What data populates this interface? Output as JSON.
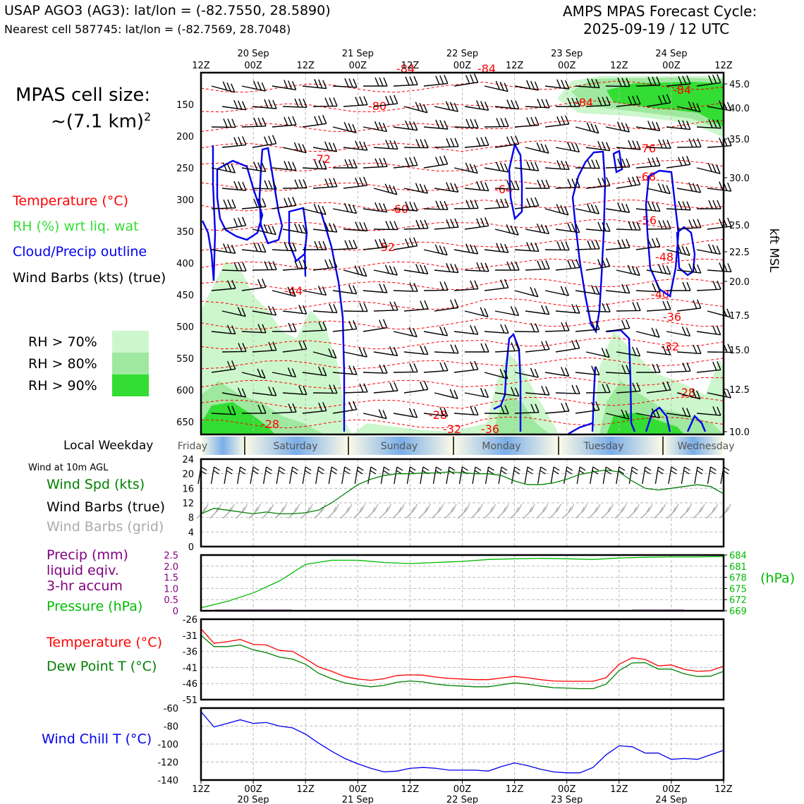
{
  "header": {
    "station_line": "USAP AGO3 (AG3): lat/lon = (-82.7550, 28.5890)",
    "cell_line": "Nearest cell 587745: lat/lon = (-82.7569, 28.7048)",
    "forecast_title": "AMPS MPAS Forecast Cycle:",
    "forecast_cycle": "2025-09-19 / 12 UTC"
  },
  "cell_size": {
    "line1": "MPAS cell size:",
    "line2": "~(7.1 km)",
    "sup": "2"
  },
  "legend": {
    "temperature": "Temperature (°C)",
    "rh": "RH (%) wrt liq. wat",
    "cloud": "Cloud/Precip outline",
    "wind": "Wind Barbs (kts) (true)",
    "rh70": "RH > 70%",
    "rh80": "RH > 80%",
    "rh90": "RH > 90%"
  },
  "colors": {
    "temperature": "#ff0000",
    "rh_text": "#33dd33",
    "cloud": "#0000ee",
    "rh70": "#ccf7cc",
    "rh80": "#9fe89f",
    "rh90": "#33dd33",
    "wind_speed": "#008000",
    "precip": "#800080",
    "pressure": "#00bb00",
    "dewpoint": "#008000",
    "windchill": "#0000ee",
    "grid_barbs": "#aaaaaa",
    "weekday_band": "#7aaee8"
  },
  "time_axis": {
    "ticks": [
      "12Z",
      "00Z",
      "12Z",
      "00Z",
      "12Z",
      "00Z",
      "12Z",
      "00Z",
      "12Z",
      "00Z",
      "12Z"
    ],
    "dates": [
      "20 Sep",
      "21 Sep",
      "22 Sep",
      "23 Sep",
      "24 Sep"
    ]
  },
  "weekday": {
    "label": "Local Weekday",
    "days": [
      "Friday",
      "Saturday",
      "Sunday",
      "Monday",
      "Tuesday",
      "Wednesday"
    ]
  },
  "cross_section": {
    "left_axis_ticks": [
      "150",
      "200",
      "250",
      "300",
      "350",
      "400",
      "450",
      "500",
      "550",
      "600",
      "650"
    ],
    "right_axis_ticks": [
      "45.0",
      "40.0",
      "35.0",
      "30.0",
      "25.0",
      "22.5",
      "20.0",
      "17.5",
      "15.0",
      "12.5",
      "10.0"
    ],
    "right_axis_label": "kft MSL",
    "temp_labels": [
      "-84",
      "-84",
      "-84",
      "-84",
      "-80",
      "-76",
      "-72",
      "-68",
      "-64",
      "-60",
      "-56",
      "-52",
      "-48",
      "-44",
      "-40",
      "-36",
      "-32",
      "-28",
      "-28",
      "-28",
      "-32",
      "-36"
    ]
  },
  "wind_panel": {
    "title": "Wind at 10m AGL",
    "label_speed": "Wind Spd (kts)",
    "label_barbs": "Wind Barbs (true)",
    "label_grid": "Wind Barbs (grid)",
    "y_ticks": [
      "24",
      "20",
      "16",
      "12",
      "8",
      "4",
      "0"
    ]
  },
  "precip_panel": {
    "label_precip_1": "Precip (mm)",
    "label_precip_2": "liquid eqiv.",
    "label_precip_3": "3-hr accum",
    "label_pressure": "Pressure (hPa)",
    "left_ticks": [
      "2.5",
      "2.0",
      "1.5",
      "1.0",
      "0.5",
      "0"
    ],
    "right_ticks": [
      "684",
      "681",
      "678",
      "675",
      "672",
      "669"
    ],
    "right_unit": "(hPa)"
  },
  "temp_panel": {
    "label_temp": "Temperature (°C)",
    "label_dew": "Dew Point T (°C)",
    "y_ticks": [
      "-26",
      "-31",
      "-36",
      "-41",
      "-46",
      "-51"
    ]
  },
  "chill_panel": {
    "label": "Wind Chill T (°C)",
    "y_ticks": [
      "-60",
      "-80",
      "-100",
      "-120",
      "-140"
    ]
  },
  "chart_data": [
    {
      "type": "line",
      "title": "Wind at 10m AGL",
      "x_hours": [
        0,
        3,
        6,
        9,
        12,
        15,
        18,
        21,
        24,
        27,
        30,
        33,
        36,
        39,
        42,
        45,
        48,
        51,
        54,
        57,
        60,
        63,
        66,
        69,
        72,
        75,
        78,
        81,
        84,
        87,
        90,
        93,
        96,
        99,
        102,
        105,
        108,
        111,
        114,
        117,
        120
      ],
      "series": [
        {
          "name": "Wind Spd (kts)",
          "values": [
            9,
            10.5,
            10,
            9.5,
            9,
            9.5,
            9,
            9,
            9.3,
            10,
            12,
            14.5,
            17,
            18.5,
            19.5,
            20,
            20,
            20.2,
            20.2,
            20.5,
            20.3,
            20,
            20,
            19.5,
            18,
            17,
            17,
            17.5,
            18.5,
            19.8,
            20.5,
            21,
            20.5,
            18,
            16,
            15.5,
            16,
            16.5,
            17,
            16.5,
            14.5
          ]
        }
      ],
      "ylim": [
        0,
        24
      ]
    },
    {
      "type": "line",
      "title": "Precip / Pressure",
      "x_hours": [
        0,
        6,
        12,
        18,
        24,
        30,
        36,
        42,
        48,
        54,
        60,
        66,
        72,
        78,
        84,
        90,
        96,
        102,
        108,
        114,
        120
      ],
      "series": [
        {
          "name": "Pressure (hPa)",
          "values": [
            669.8,
            671.5,
            673.8,
            677,
            681.5,
            682.6,
            682.6,
            682,
            681.7,
            682,
            682.3,
            682.8,
            683,
            683.1,
            683,
            682.8,
            683.2,
            683.4,
            683.5,
            683.5,
            683.6
          ]
        },
        {
          "name": "Precip (mm)",
          "values": [
            0,
            0.05,
            0.05,
            0.05,
            0,
            0,
            0,
            0,
            0,
            0,
            0,
            0,
            0,
            0,
            0,
            0,
            0,
            0.05,
            0.05,
            0,
            0
          ]
        }
      ],
      "ylim_precip": [
        0,
        2.5
      ],
      "ylim_pressure": [
        669,
        684
      ]
    },
    {
      "type": "line",
      "title": "Temperature / Dew Point",
      "x_hours": [
        0,
        3,
        6,
        9,
        12,
        15,
        18,
        21,
        24,
        27,
        30,
        33,
        36,
        39,
        42,
        45,
        48,
        51,
        54,
        57,
        60,
        63,
        66,
        69,
        72,
        75,
        78,
        81,
        84,
        87,
        90,
        93,
        96,
        99,
        102,
        105,
        108,
        111,
        114,
        117,
        120
      ],
      "series": [
        {
          "name": "Temperature (°C)",
          "values": [
            -29,
            -33.5,
            -33,
            -32.3,
            -33.8,
            -34,
            -35.7,
            -36,
            -38.3,
            -40.8,
            -42.2,
            -43.8,
            -44.6,
            -45,
            -44.5,
            -43.5,
            -43.3,
            -43.4,
            -44,
            -44.4,
            -44.6,
            -44.8,
            -44.8,
            -44.3,
            -43.8,
            -44.2,
            -44.8,
            -45.2,
            -45.3,
            -45.3,
            -45.3,
            -44.2,
            -40,
            -38,
            -38.5,
            -40.5,
            -40.2,
            -41.6,
            -42.2,
            -42,
            -40.6
          ]
        },
        {
          "name": "Dew Point T (°C)",
          "values": [
            -31,
            -34.5,
            -34.5,
            -34,
            -35.5,
            -36.4,
            -37.8,
            -38.4,
            -40,
            -42.8,
            -44.5,
            -45.8,
            -46.5,
            -47,
            -46.6,
            -45.6,
            -45.2,
            -45.5,
            -46.2,
            -46.6,
            -46.8,
            -47,
            -47,
            -46.4,
            -45.8,
            -46.2,
            -46.8,
            -47.3,
            -47.4,
            -47.6,
            -47.6,
            -46.2,
            -42,
            -39.6,
            -39.5,
            -41.5,
            -41.5,
            -43,
            -43.8,
            -43.7,
            -42.2
          ]
        }
      ],
      "ylim": [
        -51,
        -26
      ]
    },
    {
      "type": "line",
      "title": "Wind Chill",
      "x_hours": [
        0,
        3,
        6,
        9,
        12,
        15,
        18,
        21,
        24,
        27,
        30,
        33,
        36,
        39,
        42,
        45,
        48,
        51,
        54,
        57,
        60,
        63,
        66,
        69,
        72,
        75,
        78,
        81,
        84,
        87,
        90,
        93,
        96,
        99,
        102,
        105,
        108,
        111,
        114,
        117,
        120
      ],
      "series": [
        {
          "name": "Wind Chill T (°C)",
          "values": [
            -64,
            -81,
            -77,
            -73,
            -77,
            -76,
            -80,
            -82,
            -89,
            -99,
            -108,
            -116,
            -122,
            -127,
            -131,
            -130,
            -127,
            -126,
            -127,
            -129,
            -129,
            -129,
            -130,
            -125,
            -121,
            -124,
            -128,
            -131,
            -132,
            -132,
            -126,
            -112,
            -102,
            -103,
            -110,
            -110,
            -117,
            -116,
            -117,
            -112,
            -107
          ]
        }
      ],
      "ylim": [
        -140,
        -60
      ]
    }
  ]
}
